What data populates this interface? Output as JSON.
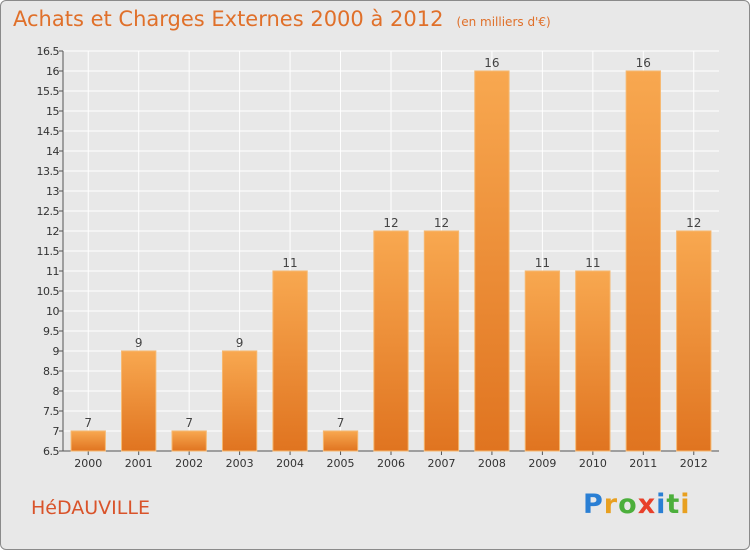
{
  "header": {
    "title": "Achats et Charges Externes 2000 à 2012",
    "unit": "(en milliers d'€)"
  },
  "commune": "HéDAUVILLE",
  "logo": {
    "letters": [
      "P",
      "r",
      "o",
      "x",
      "i",
      "t",
      "i"
    ],
    "colors": [
      "#2a7fd4",
      "#e8a020",
      "#4caf3c",
      "#e8402a",
      "#2a7fd4",
      "#4caf3c",
      "#e8a020"
    ]
  },
  "colors": {
    "title": "#e0702a",
    "bar_top": "#f8a850",
    "bar_bottom": "#e07420",
    "plot_bg": "#e8e8e8",
    "grid": "#ffffff"
  },
  "chart_data": {
    "type": "bar",
    "title": "Achats et Charges Externes 2000 à 2012",
    "subtitle": "(en milliers d'€)",
    "categories": [
      "2000",
      "2001",
      "2002",
      "2003",
      "2004",
      "2005",
      "2006",
      "2007",
      "2008",
      "2009",
      "2010",
      "2011",
      "2012"
    ],
    "values": [
      7,
      9,
      7,
      9,
      11,
      7,
      12,
      12,
      16,
      11,
      11,
      16,
      12
    ],
    "ylim": [
      6.5,
      16.5
    ],
    "yticks": [
      "6.5",
      "7",
      "7.5",
      "8",
      "8.5",
      "9",
      "9.5",
      "10",
      "10.5",
      "11",
      "11.5",
      "12",
      "12.5",
      "13",
      "13.5",
      "14",
      "14.5",
      "15",
      "15.5",
      "16",
      "16.5"
    ],
    "grid": true,
    "xlabel": "",
    "ylabel": ""
  }
}
